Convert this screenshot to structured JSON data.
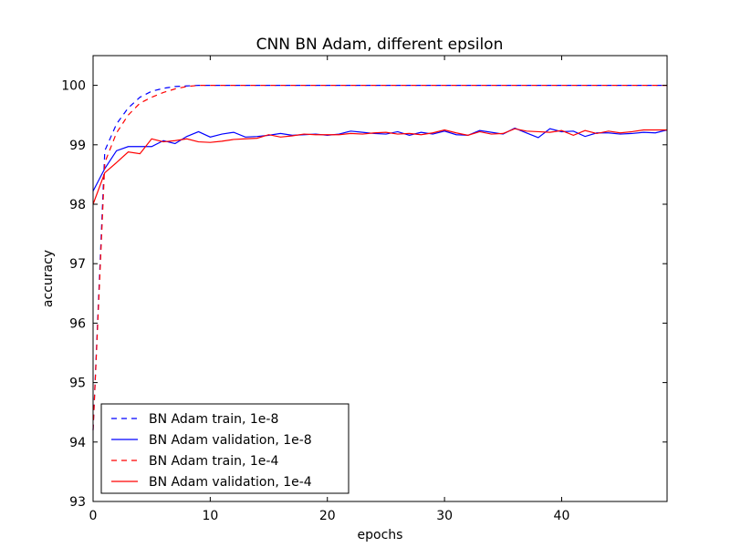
{
  "chart_data": {
    "type": "line",
    "title": "CNN BN Adam, different epsilon",
    "xlabel": "epochs",
    "ylabel": "accuracy",
    "xlim": [
      0,
      49
    ],
    "ylim": [
      93,
      100.5
    ],
    "xticks": [
      0,
      10,
      20,
      30,
      40
    ],
    "yticks": [
      93,
      94,
      95,
      96,
      97,
      98,
      99,
      100
    ],
    "grid": false,
    "legend_position": "lower-left",
    "x": [
      0,
      1,
      2,
      3,
      4,
      5,
      6,
      7,
      8,
      9,
      10,
      11,
      12,
      13,
      14,
      15,
      16,
      17,
      18,
      19,
      20,
      21,
      22,
      23,
      24,
      25,
      26,
      27,
      28,
      29,
      30,
      31,
      32,
      33,
      34,
      35,
      36,
      37,
      38,
      39,
      40,
      41,
      42,
      43,
      44,
      45,
      46,
      47,
      48,
      49
    ],
    "series": [
      {
        "name": "BN Adam train, 1e-8",
        "color": "#0000ff",
        "style": "dashed",
        "values": [
          94.2,
          98.9,
          99.35,
          99.62,
          99.8,
          99.9,
          99.95,
          99.98,
          99.99,
          100,
          100,
          100,
          100,
          100,
          100,
          100,
          100,
          100,
          100,
          100,
          100,
          100,
          100,
          100,
          100,
          100,
          100,
          100,
          100,
          100,
          100,
          100,
          100,
          100,
          100,
          100,
          100,
          100,
          100,
          100,
          100,
          100,
          100,
          100,
          100,
          100,
          100,
          100,
          100,
          100
        ]
      },
      {
        "name": "BN Adam validation, 1e-8",
        "color": "#0000ff",
        "style": "solid",
        "values": [
          98.22,
          98.6,
          98.9,
          98.97,
          98.97,
          98.97,
          99.07,
          99.02,
          99.14,
          99.22,
          99.13,
          99.18,
          99.21,
          99.13,
          99.14,
          99.16,
          99.19,
          99.16,
          99.17,
          99.18,
          99.16,
          99.18,
          99.23,
          99.21,
          99.19,
          99.18,
          99.22,
          99.16,
          99.21,
          99.18,
          99.23,
          99.17,
          99.16,
          99.24,
          99.21,
          99.18,
          99.28,
          99.2,
          99.12,
          99.27,
          99.22,
          99.23,
          99.14,
          99.2,
          99.2,
          99.18,
          99.19,
          99.21,
          99.2,
          99.25
        ]
      },
      {
        "name": "BN Adam train, 1e-4",
        "color": "#ff0000",
        "style": "dashed",
        "values": [
          94.2,
          98.7,
          99.2,
          99.5,
          99.7,
          99.8,
          99.88,
          99.94,
          99.98,
          100,
          100,
          100,
          100,
          100,
          100,
          100,
          100,
          100,
          100,
          100,
          100,
          100,
          100,
          100,
          100,
          100,
          100,
          100,
          100,
          100,
          100,
          100,
          100,
          100,
          100,
          100,
          100,
          100,
          100,
          100,
          100,
          100,
          100,
          100,
          100,
          100,
          100,
          100,
          100,
          100
        ]
      },
      {
        "name": "BN Adam validation, 1e-4",
        "color": "#ff0000",
        "style": "solid",
        "values": [
          98.0,
          98.53,
          98.7,
          98.88,
          98.85,
          99.1,
          99.05,
          99.07,
          99.1,
          99.05,
          99.04,
          99.06,
          99.09,
          99.1,
          99.11,
          99.17,
          99.13,
          99.15,
          99.18,
          99.17,
          99.17,
          99.17,
          99.19,
          99.18,
          99.2,
          99.21,
          99.18,
          99.19,
          99.17,
          99.2,
          99.25,
          99.2,
          99.16,
          99.22,
          99.18,
          99.19,
          99.27,
          99.23,
          99.22,
          99.21,
          99.24,
          99.16,
          99.24,
          99.19,
          99.23,
          99.2,
          99.22,
          99.25,
          99.25,
          99.25
        ]
      }
    ]
  }
}
